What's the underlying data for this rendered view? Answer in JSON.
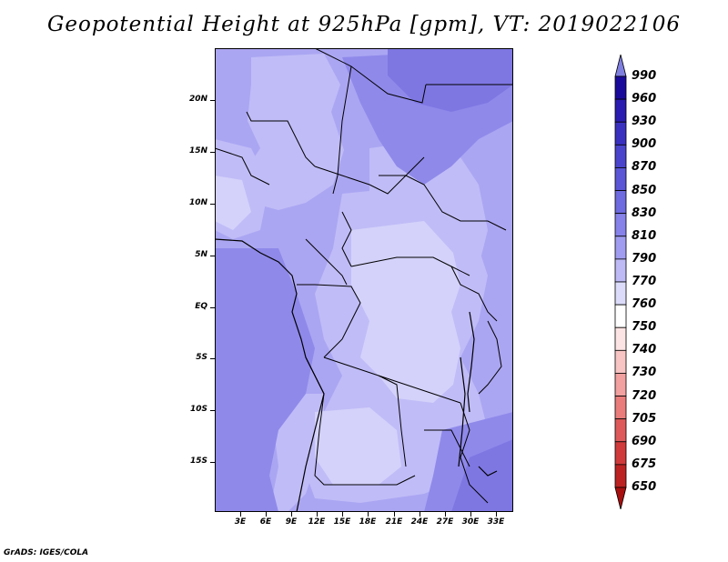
{
  "title": "Geopotential Height at 925hPa [gpm], VT: 2019022106",
  "credit": "GrADS: IGES/COLA",
  "lat_labels": [
    "20N",
    "15N",
    "10N",
    "5N",
    "EQ",
    "5S",
    "10S",
    "15S"
  ],
  "lon_labels": [
    "3E",
    "6E",
    "9E",
    "12E",
    "15E",
    "18E",
    "21E",
    "24E",
    "27E",
    "30E",
    "33E"
  ],
  "colorbar": {
    "levels": [
      "990",
      "960",
      "930",
      "900",
      "870",
      "850",
      "830",
      "810",
      "790",
      "770",
      "760",
      "750",
      "740",
      "730",
      "720",
      "705",
      "690",
      "675",
      "650"
    ],
    "colors": [
      "#7f7fe0",
      "#1a0a9c",
      "#2a1cb0",
      "#3a30c0",
      "#4a44cc",
      "#5a56d6",
      "#6e6ae0",
      "#8682ea",
      "#a09cf0",
      "#bdbaf6",
      "#dcdcfa",
      "#ffffff",
      "#fde4e4",
      "#f8c4c4",
      "#f2a0a0",
      "#ea7c7c",
      "#de5a5a",
      "#d03a3a",
      "#bc2222",
      "#a80f0f"
    ]
  },
  "map_colors": {
    "base": "#aba6f2",
    "lighter": "#c0bcf7",
    "lightest": "#d4d2fa",
    "darker": "#8f89ea",
    "darkest": "#7e77e2"
  }
}
